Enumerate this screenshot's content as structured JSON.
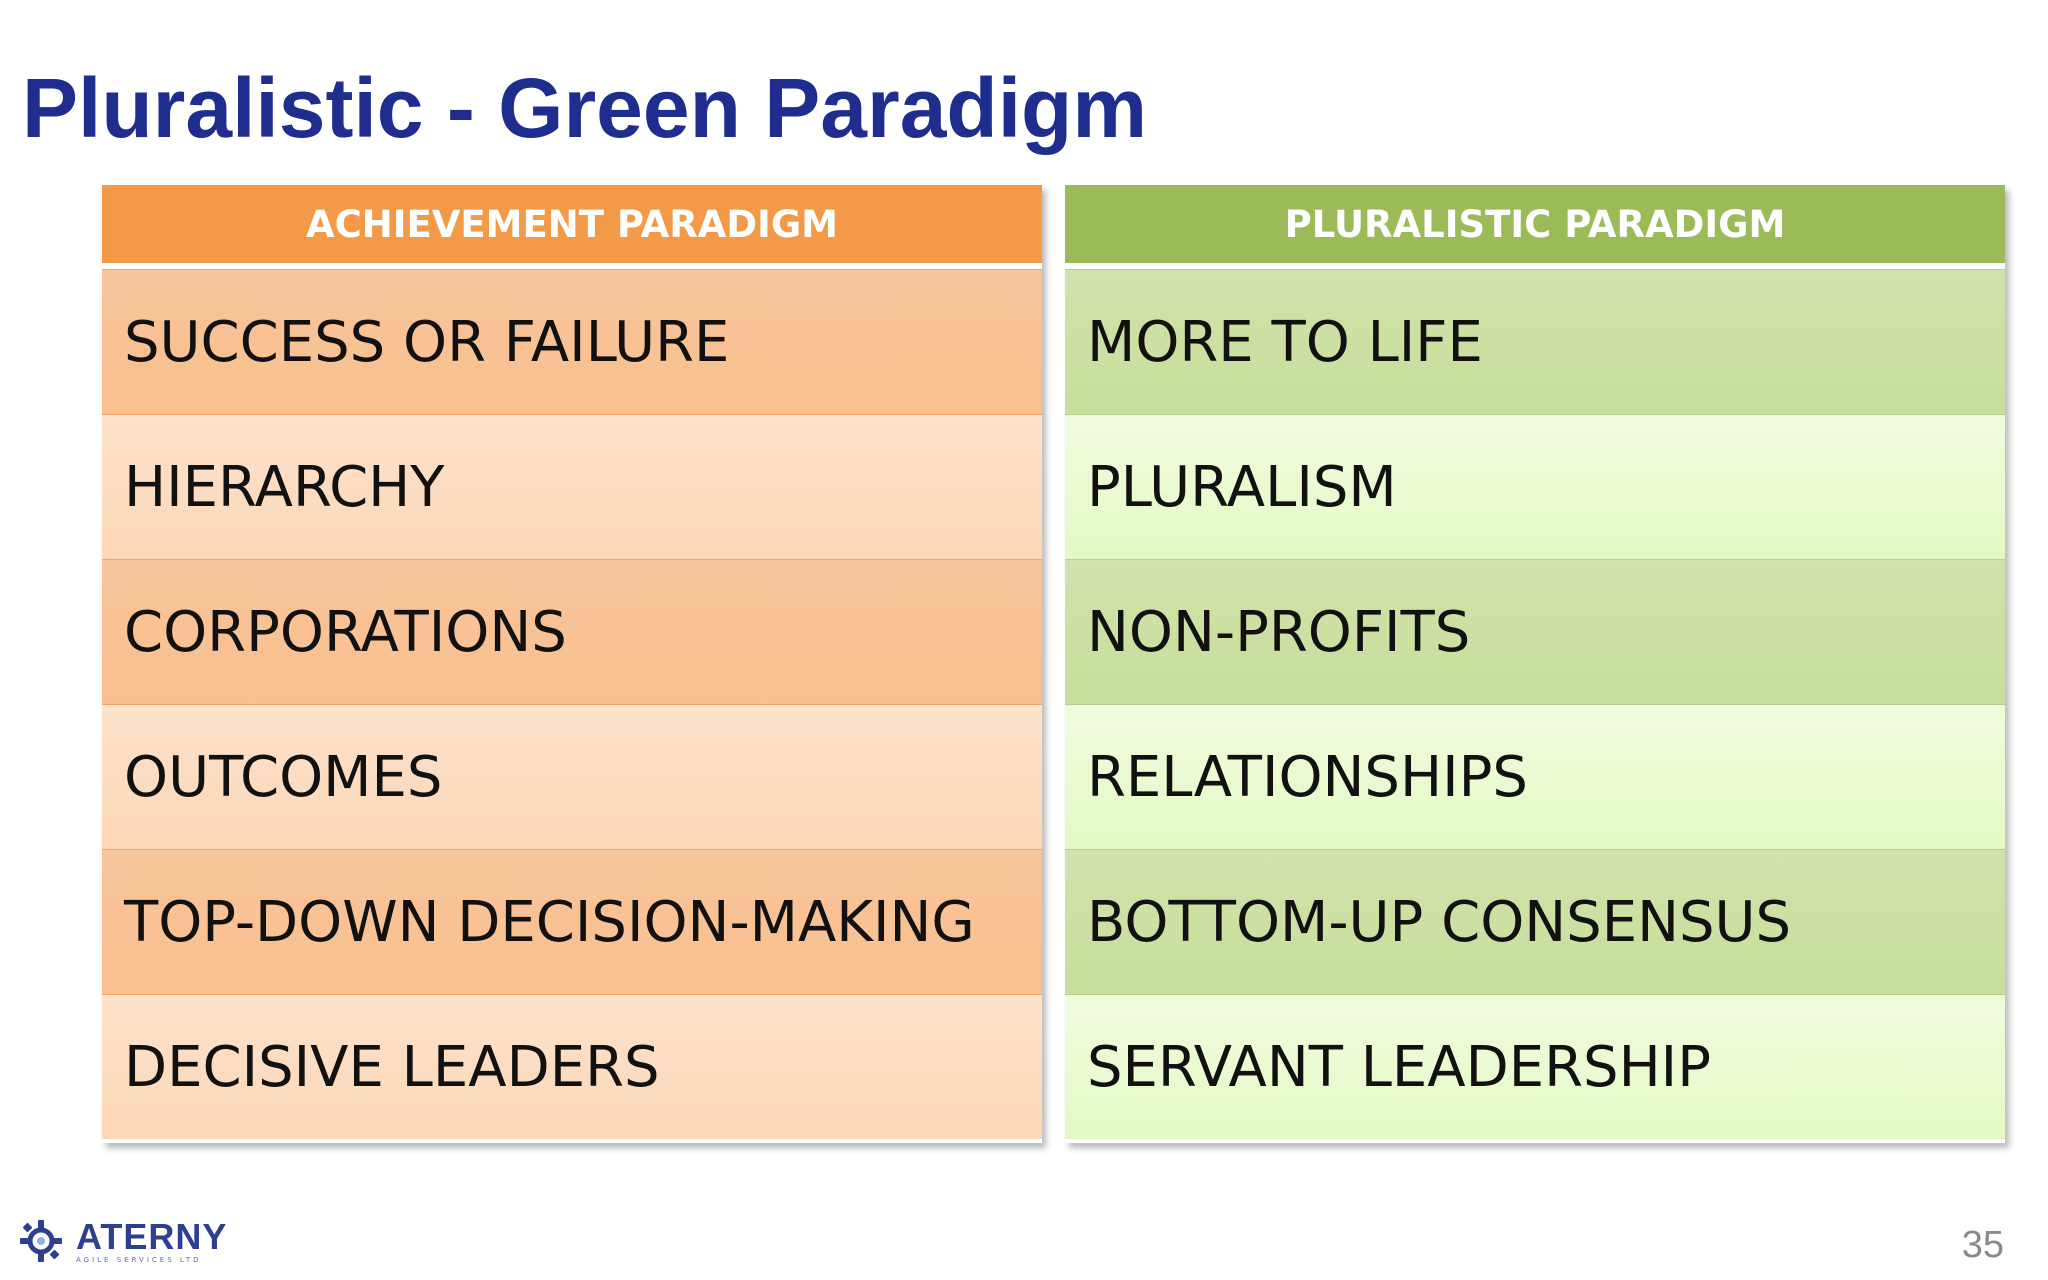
{
  "slide": {
    "title": "Pluralistic - Green Paradigm",
    "page_number": "35"
  },
  "table": {
    "left": {
      "header": "ACHIEVEMENT PARADIGM",
      "rows": [
        "SUCCESS OR FAILURE",
        "HIERARCHY",
        "CORPORATIONS",
        "OUTCOMES",
        "TOP-DOWN DECISION-MAKING",
        "DECISIVE LEADERS"
      ]
    },
    "right": {
      "header": "PLURALISTIC PARADIGM",
      "rows": [
        "MORE TO LIFE",
        "PLURALISM",
        "NON-PROFITS",
        "RELATIONSHIPS",
        "BOTTOM-UP CONSENSUS",
        "SERVANT LEADERSHIP"
      ]
    }
  },
  "logo": {
    "name": "ATERNY",
    "tagline": "AGILE SERVICES LTD",
    "icon": "gear-icon"
  },
  "colors": {
    "title": "#1f2d8f",
    "achievement_header": "#f39a48",
    "pluralistic_header": "#9bbb59"
  }
}
